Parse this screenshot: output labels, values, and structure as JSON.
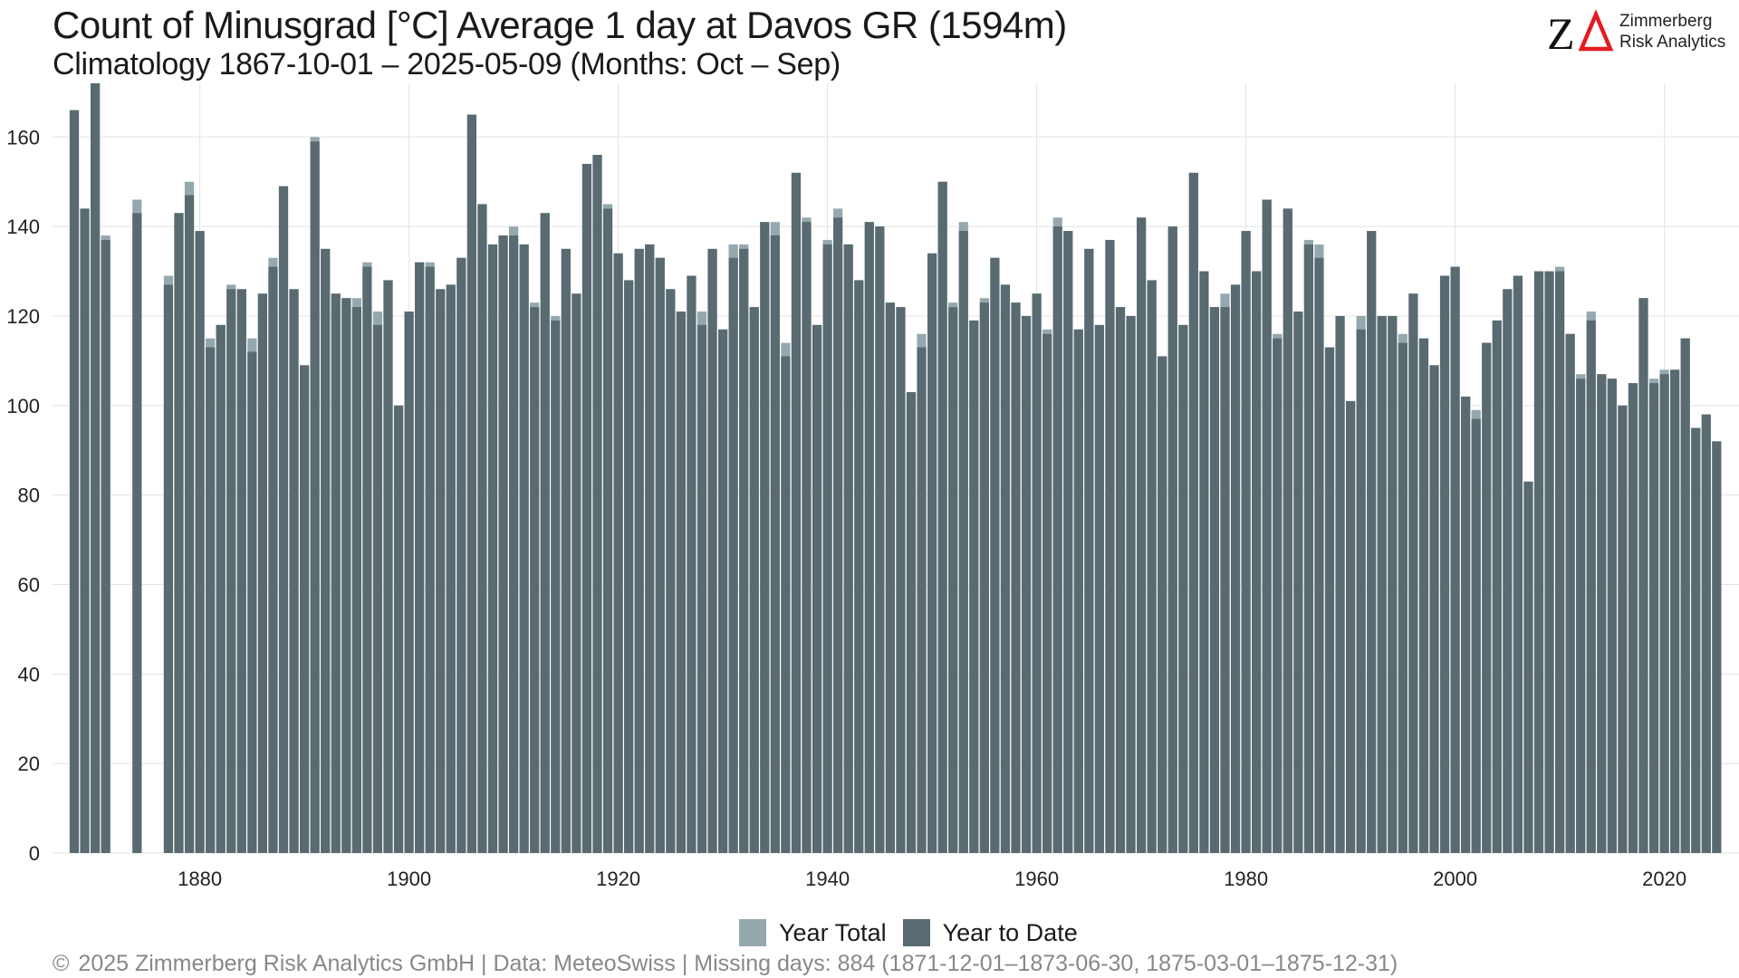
{
  "header": {
    "title": "Count of Minusgrad [°C] Average 1 day at Davos  GR (1594m)",
    "subtitle": "Climatology 1867-10-01 – 2025-05-09 (Months: Oct – Sep)"
  },
  "logo": {
    "line1": "Zimmerberg",
    "line2": "Risk Analytics",
    "mark": "ZΔ"
  },
  "legend": {
    "items": [
      "Year Total",
      "Year to Date"
    ]
  },
  "footer": {
    "copyright_symbol": "©",
    "caption": "2025 Zimmerberg Risk Analytics GmbH | Data: MeteoSwiss | Missing days: 884 (1871-12-01–1873-06-30, 1875-03-01–1875-12-31)"
  },
  "colors": {
    "year_total": "#95a8ae",
    "year_to_date": "#596a70",
    "grid": "#e3e3e3"
  },
  "chart_data": {
    "type": "bar",
    "title": "Count of Minusgrad [°C] Average 1 day at Davos  GR (1594m)",
    "subtitle": "Climatology 1867-10-01 – 2025-05-09 (Months: Oct – Sep)",
    "xlabel": "",
    "ylabel": "",
    "xlim": [
      1867,
      2025
    ],
    "ylim": [
      0,
      172
    ],
    "x_ticks": [
      1880,
      1900,
      1920,
      1940,
      1960,
      1980,
      2000,
      2020
    ],
    "y_ticks": [
      0,
      20,
      40,
      60,
      80,
      100,
      120,
      140,
      160
    ],
    "grid": true,
    "legend_position": "bottom",
    "stacked_overlay": true,
    "x": [
      1868,
      1869,
      1870,
      1871,
      1872,
      1873,
      1874,
      1875,
      1876,
      1877,
      1878,
      1879,
      1880,
      1881,
      1882,
      1883,
      1884,
      1885,
      1886,
      1887,
      1888,
      1889,
      1890,
      1891,
      1892,
      1893,
      1894,
      1895,
      1896,
      1897,
      1898,
      1899,
      1900,
      1901,
      1902,
      1903,
      1904,
      1905,
      1906,
      1907,
      1908,
      1909,
      1910,
      1911,
      1912,
      1913,
      1914,
      1915,
      1916,
      1917,
      1918,
      1919,
      1920,
      1921,
      1922,
      1923,
      1924,
      1925,
      1926,
      1927,
      1928,
      1929,
      1930,
      1931,
      1932,
      1933,
      1934,
      1935,
      1936,
      1937,
      1938,
      1939,
      1940,
      1941,
      1942,
      1943,
      1944,
      1945,
      1946,
      1947,
      1948,
      1949,
      1950,
      1951,
      1952,
      1953,
      1954,
      1955,
      1956,
      1957,
      1958,
      1959,
      1960,
      1961,
      1962,
      1963,
      1964,
      1965,
      1966,
      1967,
      1968,
      1969,
      1970,
      1971,
      1972,
      1973,
      1974,
      1975,
      1976,
      1977,
      1978,
      1979,
      1980,
      1981,
      1982,
      1983,
      1984,
      1985,
      1986,
      1987,
      1988,
      1989,
      1990,
      1991,
      1992,
      1993,
      1994,
      1995,
      1996,
      1997,
      1998,
      1999,
      2000,
      2001,
      2002,
      2003,
      2004,
      2005,
      2006,
      2007,
      2008,
      2009,
      2010,
      2011,
      2012,
      2013,
      2014,
      2015,
      2016,
      2017,
      2018,
      2019,
      2020,
      2021,
      2022,
      2023,
      2024,
      2025
    ],
    "series": [
      {
        "name": "Year Total",
        "values": [
          166,
          144,
          172,
          138,
          null,
          null,
          146,
          null,
          null,
          129,
          143,
          150,
          139,
          115,
          118,
          127,
          126,
          115,
          125,
          133,
          149,
          126,
          109,
          160,
          135,
          125,
          124,
          124,
          132,
          121,
          128,
          100,
          121,
          132,
          132,
          126,
          127,
          133,
          165,
          145,
          136,
          138,
          140,
          136,
          123,
          143,
          120,
          135,
          125,
          154,
          156,
          145,
          134,
          128,
          135,
          136,
          133,
          126,
          121,
          129,
          121,
          135,
          117,
          136,
          136,
          122,
          141,
          141,
          114,
          152,
          142,
          118,
          137,
          144,
          136,
          128,
          141,
          140,
          123,
          122,
          103,
          116,
          134,
          150,
          123,
          141,
          119,
          124,
          133,
          127,
          123,
          120,
          125,
          117,
          142,
          139,
          117,
          135,
          118,
          137,
          122,
          120,
          142,
          128,
          111,
          140,
          118,
          152,
          130,
          122,
          125,
          127,
          139,
          130,
          146,
          116,
          144,
          121,
          137,
          136,
          113,
          120,
          101,
          120,
          139,
          120,
          120,
          116,
          125,
          115,
          109,
          129,
          131,
          102,
          99,
          114,
          119,
          126,
          129,
          83,
          130,
          130,
          131,
          116,
          107,
          121,
          107,
          106,
          100,
          105,
          124,
          106,
          108,
          108,
          115,
          95,
          98,
          92
        ]
      },
      {
        "name": "Year to Date",
        "values": [
          166,
          144,
          172,
          137,
          null,
          null,
          143,
          null,
          null,
          127,
          143,
          147,
          139,
          113,
          118,
          126,
          126,
          112,
          125,
          131,
          149,
          126,
          109,
          159,
          135,
          125,
          124,
          122,
          131,
          118,
          128,
          100,
          121,
          132,
          131,
          126,
          127,
          133,
          165,
          145,
          136,
          138,
          138,
          136,
          122,
          143,
          119,
          135,
          125,
          154,
          156,
          144,
          134,
          128,
          135,
          136,
          133,
          126,
          121,
          129,
          118,
          135,
          117,
          133,
          135,
          122,
          141,
          138,
          111,
          152,
          141,
          118,
          136,
          142,
          136,
          128,
          141,
          140,
          123,
          122,
          103,
          113,
          134,
          150,
          122,
          139,
          119,
          123,
          133,
          127,
          123,
          120,
          125,
          116,
          140,
          139,
          117,
          135,
          118,
          137,
          122,
          120,
          142,
          128,
          111,
          140,
          118,
          152,
          130,
          122,
          122,
          127,
          139,
          130,
          146,
          115,
          144,
          121,
          136,
          133,
          113,
          120,
          101,
          117,
          139,
          120,
          120,
          114,
          125,
          115,
          109,
          129,
          131,
          102,
          97,
          114,
          119,
          126,
          129,
          83,
          130,
          130,
          130,
          116,
          106,
          119,
          107,
          106,
          100,
          105,
          124,
          105,
          107,
          108,
          115,
          95,
          98,
          92
        ]
      }
    ]
  }
}
